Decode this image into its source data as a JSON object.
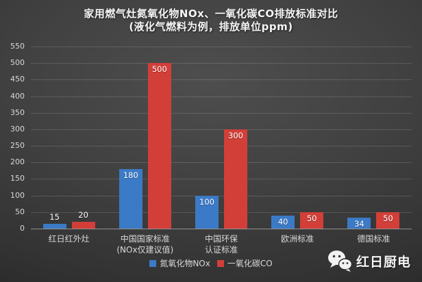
{
  "title": {
    "line1": "家用燃气灶氮氧化物NOx、一氧化碳CO排放标准对比",
    "line2": "(液化气燃料为例，排放单位ppm)"
  },
  "chart_data": {
    "type": "bar",
    "categories": [
      "红日红外灶",
      "中国国家标准\n(NOx仅建议值)",
      "中国环保\n认证标准",
      "欧洲标准",
      "德国标准"
    ],
    "series": [
      {
        "name": "氮氧化物NOx",
        "color": "#3b7ac6",
        "values": [
          15,
          180,
          100,
          40,
          34
        ]
      },
      {
        "name": "一氧化碳CO",
        "color": "#d23f38",
        "values": [
          20,
          500,
          300,
          50,
          50
        ]
      }
    ],
    "ylim": [
      0,
      550
    ],
    "ytick_step": 50,
    "grid": true,
    "legend_position": "bottom",
    "data_labels": true,
    "colors": {
      "grid": "rgba(255,255,255,0.14)",
      "axis": "rgba(255,255,255,0.45)",
      "tick_text": "#d9d9d9",
      "label_text": "#ffffff"
    }
  },
  "watermark": {
    "icon": "wechat-icon",
    "brand": "红日厨电"
  }
}
